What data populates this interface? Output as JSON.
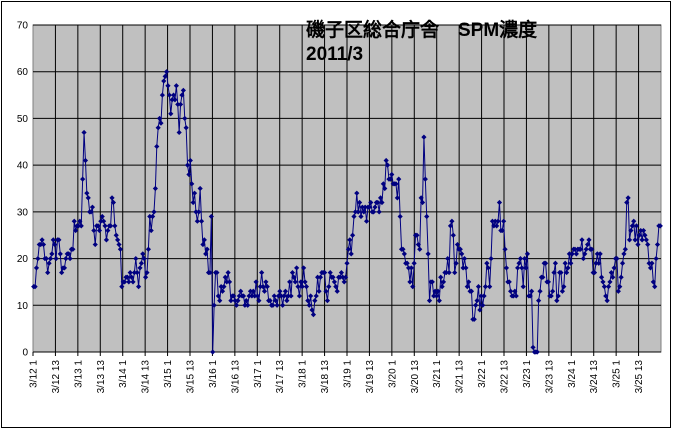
{
  "chart_data": {
    "type": "line",
    "title_line1": "磯子区総合庁舎　SPM濃度",
    "title_line2": "2011/3",
    "xlabel": "",
    "ylabel": "",
    "ylim": [
      0,
      70
    ],
    "yticks": [
      0,
      10,
      20,
      30,
      40,
      50,
      60,
      70
    ],
    "x_tick_labels": [
      "3/12 1",
      "3/12 13",
      "3/13 1",
      "3/13 13",
      "3/14 1",
      "3/14 13",
      "3/15 1",
      "3/15 13",
      "3/16 1",
      "3/16 13",
      "3/17 1",
      "3/17 13",
      "3/18 1",
      "3/18 13",
      "3/19 1",
      "3/19 13",
      "3/20 1",
      "3/20 13",
      "3/21 1",
      "3/21 13",
      "3/22 1",
      "3/22 13",
      "3/23 1",
      "3/23 13",
      "3/24 1",
      "3/24 13",
      "3/25 1",
      "3/25 13"
    ],
    "grid": true,
    "legend": "none",
    "series_color": "#000080",
    "plot_background": "#c0c0c0",
    "series": [
      {
        "values": [
          14,
          14,
          18,
          20,
          23,
          23,
          24,
          23,
          20,
          20,
          17,
          19,
          20,
          21,
          24,
          23,
          20,
          24,
          24,
          21,
          17,
          18,
          18,
          20,
          21,
          21,
          20,
          22,
          22,
          28,
          26,
          27,
          27,
          28,
          27,
          37,
          47,
          41,
          34,
          33,
          30,
          30,
          31,
          26,
          23,
          27,
          27,
          26,
          28,
          29,
          28,
          27,
          24,
          26,
          27,
          27,
          33,
          32,
          27,
          25,
          24,
          23,
          22,
          14,
          15,
          15,
          16,
          16,
          15,
          17,
          16,
          15,
          17,
          20,
          17,
          14,
          18,
          19,
          21,
          20,
          16,
          17,
          22,
          29,
          26,
          29,
          30,
          35,
          44,
          48,
          50,
          49,
          55,
          58,
          59,
          60,
          57,
          55,
          51,
          54,
          55,
          54,
          57,
          53,
          47,
          53,
          55,
          56,
          50,
          48,
          40,
          38,
          41,
          36,
          32,
          34,
          30,
          28,
          30,
          35,
          28,
          23,
          24,
          21,
          22,
          17,
          17,
          29,
          0,
          10,
          17,
          17,
          12,
          11,
          14,
          13,
          14,
          16,
          15,
          17,
          15,
          11,
          12,
          12,
          11,
          10,
          11,
          12,
          13,
          12,
          12,
          10,
          11,
          10,
          12,
          13,
          12,
          13,
          12,
          15,
          12,
          11,
          14,
          17,
          14,
          13,
          15,
          14,
          11,
          11,
          10,
          10,
          12,
          11,
          10,
          12,
          13,
          12,
          10,
          12,
          13,
          11,
          12,
          15,
          12,
          17,
          16,
          15,
          18,
          14,
          12,
          15,
          14,
          18,
          15,
          14,
          11,
          10,
          12,
          9,
          8,
          11,
          12,
          16,
          13,
          16,
          17,
          17,
          17,
          13,
          11,
          14,
          17,
          16,
          16,
          15,
          14,
          13,
          16,
          16,
          17,
          16,
          15,
          16,
          19,
          22,
          24,
          21,
          25,
          29,
          30,
          34,
          30,
          32,
          29,
          31,
          30,
          31,
          28,
          31,
          31,
          32,
          30,
          30,
          31,
          32,
          32,
          30,
          33,
          32,
          36,
          35,
          41,
          40,
          37,
          37,
          38,
          36,
          36,
          36,
          33,
          37,
          29,
          22,
          22,
          21,
          19,
          19,
          18,
          15,
          18,
          14,
          19,
          25,
          25,
          23,
          22,
          33,
          32,
          46,
          37,
          29,
          21,
          11,
          15,
          15,
          12,
          13,
          12,
          13,
          11,
          16,
          14,
          15,
          17,
          17,
          20,
          17,
          27,
          28,
          25,
          17,
          19,
          23,
          22,
          22,
          21,
          18,
          20,
          18,
          14,
          15,
          13,
          13,
          7,
          7,
          10,
          11,
          14,
          9,
          12,
          10,
          12,
          14,
          19,
          18,
          14,
          20,
          28,
          27,
          28,
          27,
          28,
          32,
          26,
          26,
          28,
          22,
          18,
          15,
          15,
          13,
          12,
          12,
          13,
          12,
          18,
          19,
          20,
          18,
          14,
          20,
          18,
          21,
          12,
          12,
          13,
          1,
          0,
          0,
          0,
          11,
          13,
          16,
          16,
          19,
          19,
          15,
          15,
          12,
          12,
          13,
          17,
          19,
          11,
          12,
          17,
          17,
          13,
          14,
          19,
          17,
          18,
          21,
          19,
          21,
          22,
          22,
          21,
          22,
          22,
          22,
          24,
          20,
          21,
          22,
          23,
          24,
          22,
          22,
          17,
          17,
          19,
          21,
          19,
          21,
          16,
          15,
          14,
          12,
          11,
          14,
          15,
          17,
          16,
          18,
          20,
          20,
          13,
          14,
          16,
          19,
          21,
          22,
          32,
          33,
          24,
          26,
          27,
          28,
          24,
          27,
          23,
          25,
          26,
          24,
          26,
          25,
          24,
          23,
          19,
          18,
          19,
          15,
          14,
          20,
          23,
          27,
          27
        ]
      }
    ]
  }
}
